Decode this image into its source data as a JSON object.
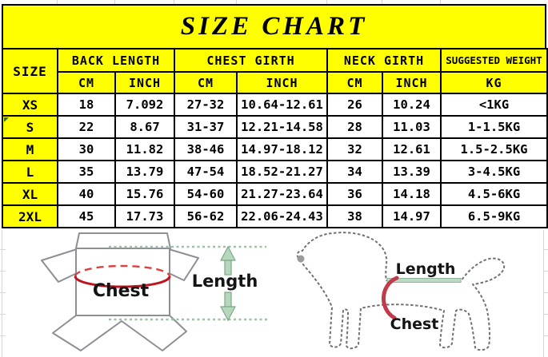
{
  "chart_data": {
    "type": "table",
    "title": "SIZE CHART",
    "header": {
      "size": "SIZE",
      "groups": [
        {
          "label": "BACK LENGTH",
          "sub": [
            "CM",
            "INCH"
          ]
        },
        {
          "label": "CHEST GIRTH",
          "sub": [
            "CM",
            "INCH"
          ]
        },
        {
          "label": "NECK GIRTH",
          "sub": [
            "CM",
            "INCH"
          ]
        },
        {
          "label": "SUGGESTED WEIGHT",
          "sub": [
            "KG"
          ]
        }
      ]
    },
    "rows": [
      {
        "size": "XS",
        "values": [
          "18",
          "7.092",
          "27-32",
          "10.64-12.61",
          "26",
          "10.24",
          "<1KG"
        ]
      },
      {
        "size": "S",
        "values": [
          "22",
          "8.67",
          "31-37",
          "12.21-14.58",
          "28",
          "11.03",
          "1-1.5KG"
        ]
      },
      {
        "size": "M",
        "values": [
          "30",
          "11.82",
          "38-46",
          "14.97-18.12",
          "32",
          "12.61",
          "1.5-2.5KG"
        ]
      },
      {
        "size": "L",
        "values": [
          "35",
          "13.79",
          "47-54",
          "18.52-21.27",
          "34",
          "13.39",
          "3-4.5KG"
        ]
      },
      {
        "size": "XL",
        "values": [
          "40",
          "15.76",
          "54-60",
          "21.27-23.64",
          "36",
          "14.18",
          "4.5-6KG"
        ]
      },
      {
        "size": "2XL",
        "values": [
          "45",
          "17.73",
          "56-62",
          "22.06-24.43",
          "38",
          "14.97",
          "6.5-9KG"
        ]
      }
    ]
  },
  "diagrams": {
    "garment": {
      "chest_label": "Chest",
      "length_label": "Length"
    },
    "dog": {
      "length_label": "Length",
      "chest_label": "Chest"
    }
  },
  "colors": {
    "highlight_yellow": "#FFFF00",
    "border_black": "#000000",
    "measure_red": "#C1121F",
    "measure_green": "#A9CFB2",
    "flag_green": "#1E7145",
    "outline_gray": "#8E8E96"
  }
}
